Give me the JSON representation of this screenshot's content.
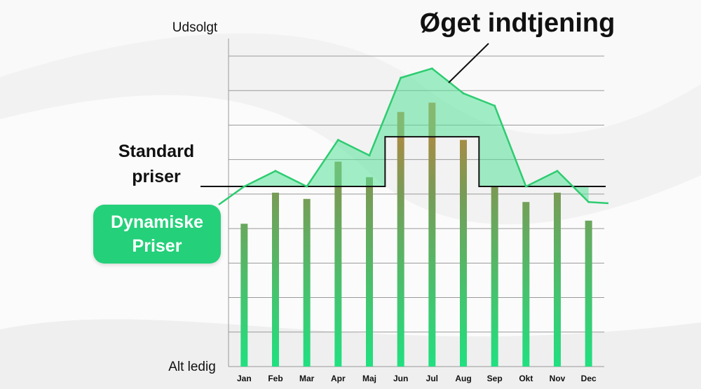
{
  "chart_data": {
    "type": "bar",
    "categories": [
      "Jan",
      "Feb",
      "Mar",
      "Apr",
      "Maj",
      "Jun",
      "Jul",
      "Aug",
      "Sep",
      "Okt",
      "Nov",
      "Dec"
    ],
    "values": [
      46,
      56,
      54,
      66,
      61,
      82,
      85,
      73,
      58,
      53,
      56,
      47
    ],
    "line": {
      "name": "Dynamiske Priser",
      "values": [
        58,
        63,
        58,
        73,
        68,
        93,
        96,
        88,
        84,
        58,
        63,
        53
      ]
    },
    "standard_price": {
      "name": "Standard priser",
      "values": [
        58,
        58,
        58,
        58,
        58,
        74,
        74,
        74,
        58,
        58,
        58,
        58
      ]
    },
    "ylim": [
      0,
      100
    ],
    "ylabel_top": "Udsolgt",
    "ylabel_bottom": "Alt ledig",
    "grid": true,
    "colors": {
      "bar_bottom": "#20e080",
      "bar_middle": "#7a9a55",
      "bar_top": "#e07a30",
      "line": "#2ecc71",
      "fill": "#57e39a",
      "standard": "#111111"
    }
  },
  "annotations": {
    "gain": "Øget indtjening",
    "standard_line1": "Standard",
    "standard_line2": "priser",
    "dynamic_line1": "Dynamiske",
    "dynamic_line2": "Priser"
  }
}
